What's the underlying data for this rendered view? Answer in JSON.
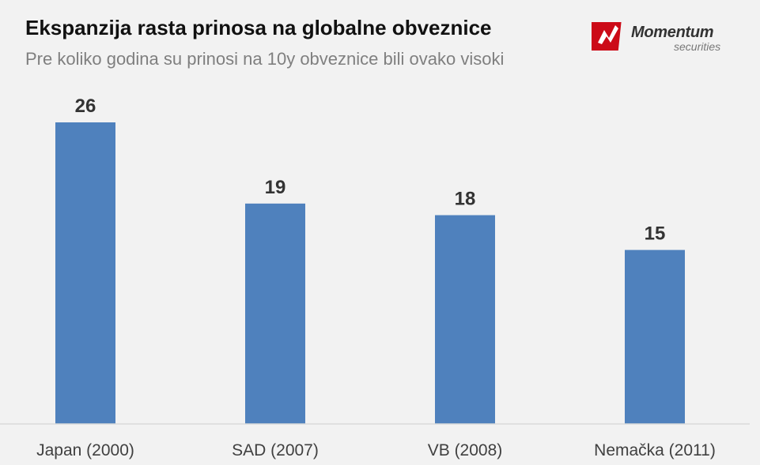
{
  "header": {
    "title": "Ekspanzija rasta prinosa na globalne obveznice",
    "subtitle": "Pre koliko godina su prinosi na 10y obveznice bili ovako visoki"
  },
  "logo": {
    "name": "Momentum",
    "sub": "securities",
    "icon": "momentum-logo-icon",
    "color": "#cc0a17"
  },
  "chart_data": {
    "type": "bar",
    "title": "Ekspanzija rasta prinosa na globalne obveznice",
    "subtitle": "Pre koliko godina su prinosi na 10y obveznice bili ovako visoki",
    "categories": [
      "Japan (2000)",
      "SAD (2007)",
      "VB (2008)",
      "Nemačka (2011)"
    ],
    "values": [
      26,
      19,
      18,
      15
    ],
    "data_labels": [
      "26",
      "19",
      "18",
      "15"
    ],
    "xlabel": "",
    "ylabel": "",
    "ylim": [
      0,
      26
    ],
    "grid": false,
    "legend": "none",
    "bar_color": "#4f81bd",
    "axis_color": "#d9d9d9"
  }
}
